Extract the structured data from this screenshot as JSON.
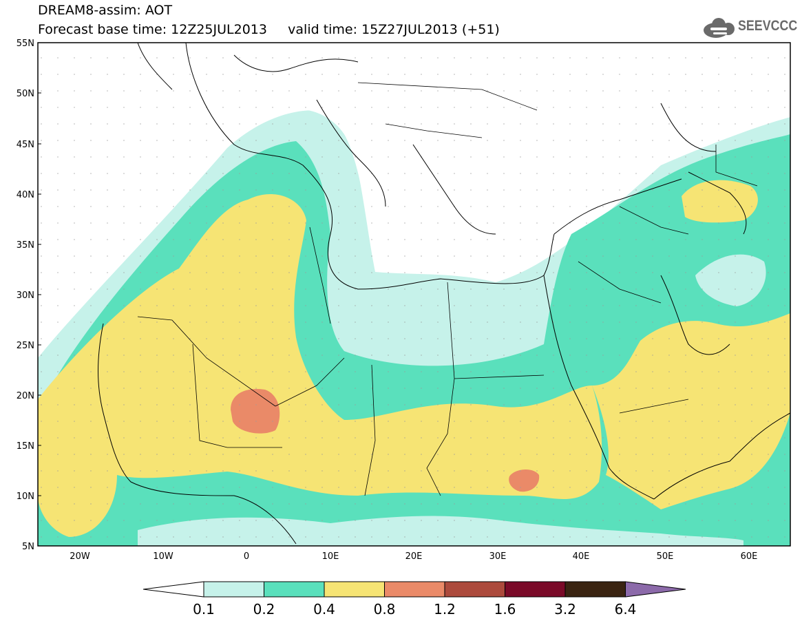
{
  "header": {
    "line1": "DREAM8-assim: AOT",
    "line2": "Forecast base time: 12Z25JUL2013     valid time: 15Z27JUL2013 (+51)"
  },
  "logo": {
    "text": "SEEVCCC",
    "icon": "cloud-icon"
  },
  "map": {
    "lat_labels": [
      "55N",
      "50N",
      "45N",
      "40N",
      "35N",
      "30N",
      "25N",
      "20N",
      "15N",
      "10N",
      "5N"
    ],
    "lon_labels": [
      "20W",
      "10W",
      "0",
      "10E",
      "20E",
      "30E",
      "40E",
      "50E",
      "60E"
    ]
  },
  "colorbar": {
    "ticks": [
      "0.1",
      "0.2",
      "0.4",
      "0.8",
      "1.2",
      "1.6",
      "3.2",
      "6.4"
    ],
    "colors": [
      "#ffffff",
      "#c6f2ea",
      "#5ae0bc",
      "#f6e474",
      "#ea8a68",
      "#ac4a3c",
      "#7a0a28",
      "#3a2412",
      "#8c6aaa"
    ]
  },
  "colors": {
    "light": "#c6f2ea",
    "teal": "#5ae0bc",
    "yellow": "#f6e474",
    "orange": "#ea8a68"
  }
}
